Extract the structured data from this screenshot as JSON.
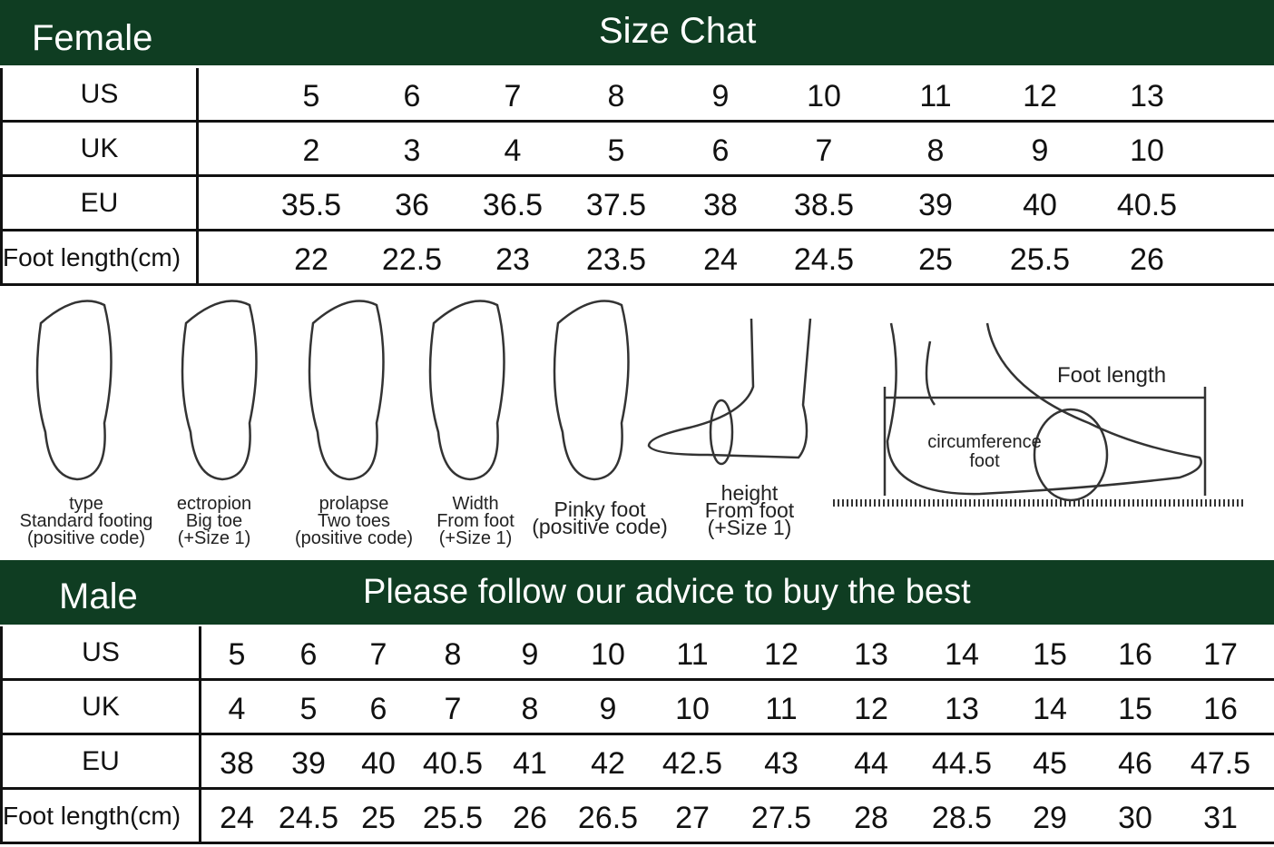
{
  "female": {
    "label": "Female",
    "title": "Size Chat",
    "rows": [
      {
        "label": "US",
        "values": [
          "5",
          "6",
          "7",
          "8",
          "9",
          "10",
          "11",
          "12",
          "13"
        ]
      },
      {
        "label": "UK",
        "values": [
          "2",
          "3",
          "4",
          "5",
          "6",
          "7",
          "8",
          "9",
          "10"
        ]
      },
      {
        "label": "EU",
        "values": [
          "35.5",
          "36",
          "36.5",
          "37.5",
          "38",
          "38.5",
          "39",
          "40",
          "40.5"
        ]
      },
      {
        "label": "Foot length(cm)",
        "values": [
          "22",
          "22.5",
          "23",
          "23.5",
          "24",
          "24.5",
          "25",
          "25.5",
          "26"
        ]
      }
    ]
  },
  "illustration": {
    "captions": [
      [
        "type",
        "Standard footing",
        "(positive code)"
      ],
      [
        "ectropion",
        "Big toe",
        "(+Size 1)"
      ],
      [
        "prolapse",
        "Two toes",
        "(positive code)"
      ],
      [
        "Width",
        "From foot",
        "(+Size 1)"
      ],
      [
        "Pinky foot",
        "(positive code)"
      ],
      [
        "height",
        "From foot",
        "(+Size 1)"
      ]
    ],
    "foot_length": "Foot length",
    "circumference": [
      "circumference",
      "foot"
    ]
  },
  "male": {
    "label": "Male",
    "title": "Please follow our advice to buy the best",
    "rows": [
      {
        "label": "US",
        "values": [
          "5",
          "6",
          "7",
          "8",
          "9",
          "10",
          "11",
          "12",
          "13",
          "14",
          "15",
          "16",
          "17"
        ]
      },
      {
        "label": "UK",
        "values": [
          "4",
          "5",
          "6",
          "7",
          "8",
          "9",
          "10",
          "11",
          "12",
          "13",
          "14",
          "15",
          "16"
        ]
      },
      {
        "label": "EU",
        "values": [
          "38",
          "39",
          "40",
          "40.5",
          "41",
          "42",
          "42.5",
          "43",
          "44",
          "44.5",
          "45",
          "46",
          "47.5"
        ]
      },
      {
        "label": "Foot length(cm)",
        "values": [
          "24",
          "24.5",
          "25",
          "25.5",
          "26",
          "26.5",
          "27",
          "27.5",
          "28",
          "28.5",
          "29",
          "30",
          "31"
        ]
      }
    ]
  },
  "colors": {
    "header_bg": "#0f3d22",
    "header_text": "#ffffff"
  }
}
